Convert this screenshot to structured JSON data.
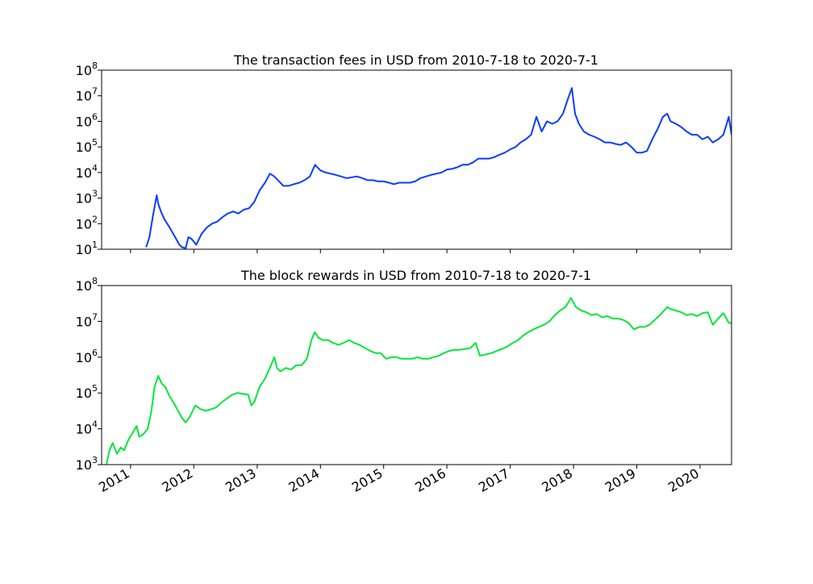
{
  "chart_data": [
    {
      "type": "line",
      "title": "The transaction fees in USD from 2010-7-18 to 2020-7-1",
      "xlabel": "",
      "ylabel": "",
      "y_scale": "log",
      "ylim": [
        10,
        100000000
      ],
      "xlim": [
        "2010-07-18",
        "2020-07-01"
      ],
      "y_tick_base": "10",
      "y_tick_exponents": [
        "1",
        "2",
        "3",
        "4",
        "5",
        "6",
        "7",
        "8"
      ],
      "x_tick_labels_shown": false,
      "grid": false,
      "series": [
        {
          "color": "#0a3cff",
          "x": [
            "2011-04-01",
            "2011-04-20",
            "2011-05-10",
            "2011-06-01",
            "2011-06-10",
            "2011-06-25",
            "2011-07-15",
            "2011-08-15",
            "2011-09-15",
            "2011-10-10",
            "2011-10-25",
            "2011-11-15",
            "2011-12-01",
            "2011-12-20",
            "2012-01-15",
            "2012-02-15",
            "2012-03-15",
            "2012-04-15",
            "2012-05-15",
            "2012-06-15",
            "2012-07-15",
            "2012-08-15",
            "2012-09-15",
            "2012-10-15",
            "2012-11-15",
            "2012-12-15",
            "2013-01-15",
            "2013-02-15",
            "2013-03-15",
            "2013-04-10",
            "2013-05-01",
            "2013-06-01",
            "2013-07-01",
            "2013-08-01",
            "2013-09-01",
            "2013-10-01",
            "2013-11-01",
            "2013-12-01",
            "2014-01-01",
            "2014-02-01",
            "2014-03-01",
            "2014-04-01",
            "2014-05-01",
            "2014-06-01",
            "2014-07-01",
            "2014-08-01",
            "2014-09-01",
            "2014-10-01",
            "2014-11-01",
            "2014-12-01",
            "2015-01-01",
            "2015-02-01",
            "2015-03-01",
            "2015-04-01",
            "2015-05-01",
            "2015-06-01",
            "2015-07-01",
            "2015-08-01",
            "2015-09-01",
            "2015-10-01",
            "2015-11-01",
            "2015-12-01",
            "2016-01-01",
            "2016-02-01",
            "2016-03-01",
            "2016-04-01",
            "2016-05-01",
            "2016-06-01",
            "2016-07-01",
            "2016-08-01",
            "2016-09-01",
            "2016-10-01",
            "2016-11-01",
            "2016-12-01",
            "2017-01-01",
            "2017-02-01",
            "2017-03-01",
            "2017-04-01",
            "2017-05-01",
            "2017-06-01",
            "2017-07-01",
            "2017-08-01",
            "2017-09-01",
            "2017-10-01",
            "2017-11-01",
            "2017-12-01",
            "2017-12-22",
            "2018-01-10",
            "2018-02-01",
            "2018-03-01",
            "2018-04-01",
            "2018-05-01",
            "2018-06-01",
            "2018-07-01",
            "2018-08-01",
            "2018-09-01",
            "2018-10-01",
            "2018-11-01",
            "2018-12-01",
            "2019-01-01",
            "2019-02-01",
            "2019-03-01",
            "2019-04-01",
            "2019-05-01",
            "2019-06-01",
            "2019-06-26",
            "2019-07-15",
            "2019-08-15",
            "2019-09-15",
            "2019-10-15",
            "2019-11-15",
            "2019-12-15",
            "2020-01-15",
            "2020-02-15",
            "2020-03-15",
            "2020-04-15",
            "2020-05-15",
            "2020-06-15",
            "2020-07-01"
          ],
          "y": [
            12,
            30,
            200,
            1300,
            600,
            300,
            150,
            70,
            30,
            15,
            12,
            11,
            30,
            25,
            15,
            40,
            70,
            100,
            120,
            180,
            250,
            300,
            250,
            350,
            400,
            700,
            2000,
            4000,
            9000,
            7000,
            5000,
            3000,
            3000,
            3500,
            4000,
            5000,
            7000,
            20000,
            12000,
            10000,
            9000,
            8000,
            7000,
            6000,
            6500,
            7000,
            6000,
            5000,
            5000,
            4500,
            4500,
            4000,
            3500,
            4000,
            4000,
            4000,
            4500,
            6000,
            7000,
            8000,
            9000,
            10000,
            13000,
            14000,
            16000,
            20000,
            20000,
            25000,
            35000,
            35000,
            35000,
            40000,
            50000,
            60000,
            80000,
            100000,
            150000,
            200000,
            300000,
            1500000,
            400000,
            1000000,
            800000,
            1000000,
            2000000,
            8000000,
            20000000,
            2000000,
            800000,
            400000,
            300000,
            250000,
            200000,
            150000,
            150000,
            130000,
            120000,
            150000,
            100000,
            60000,
            60000,
            70000,
            200000,
            500000,
            1500000,
            2000000,
            1000000,
            800000,
            600000,
            400000,
            300000,
            300000,
            200000,
            250000,
            150000,
            200000,
            300000,
            1500000,
            300000
          ]
        }
      ]
    },
    {
      "type": "line",
      "title": "The block rewards in USD from 2010-7-18 to 2020-7-1",
      "xlabel": "",
      "ylabel": "",
      "y_scale": "log",
      "ylim": [
        1000,
        100000000
      ],
      "xlim": [
        "2010-07-18",
        "2020-07-01"
      ],
      "y_tick_base": "10",
      "y_tick_exponents": [
        "3",
        "4",
        "5",
        "6",
        "7",
        "8"
      ],
      "x_tick_labels": [
        "2011",
        "2012",
        "2013",
        "2014",
        "2015",
        "2016",
        "2017",
        "2018",
        "2019",
        "2020"
      ],
      "grid": false,
      "series": [
        {
          "color": "#05e639",
          "x": [
            "2010-08-15",
            "2010-09-01",
            "2010-09-20",
            "2010-10-15",
            "2010-11-05",
            "2010-11-25",
            "2010-12-20",
            "2011-01-15",
            "2011-02-05",
            "2011-02-20",
            "2011-03-15",
            "2011-04-10",
            "2011-05-01",
            "2011-05-20",
            "2011-06-10",
            "2011-07-01",
            "2011-07-20",
            "2011-08-15",
            "2011-09-10",
            "2011-10-05",
            "2011-10-25",
            "2011-11-15",
            "2011-12-10",
            "2012-01-10",
            "2012-02-10",
            "2012-03-10",
            "2012-04-10",
            "2012-05-10",
            "2012-06-10",
            "2012-07-10",
            "2012-08-10",
            "2012-09-10",
            "2012-10-10",
            "2012-11-10",
            "2012-11-28",
            "2012-12-15",
            "2013-01-15",
            "2013-02-15",
            "2013-03-15",
            "2013-04-10",
            "2013-04-25",
            "2013-05-15",
            "2013-06-15",
            "2013-07-15",
            "2013-08-15",
            "2013-09-15",
            "2013-10-15",
            "2013-11-10",
            "2013-11-30",
            "2013-12-20",
            "2014-01-15",
            "2014-02-15",
            "2014-03-15",
            "2014-04-15",
            "2014-05-15",
            "2014-06-15",
            "2014-07-15",
            "2014-08-15",
            "2014-09-15",
            "2014-10-15",
            "2014-11-15",
            "2014-12-15",
            "2015-01-15",
            "2015-02-15",
            "2015-03-15",
            "2015-04-15",
            "2015-05-15",
            "2015-06-15",
            "2015-07-15",
            "2015-08-15",
            "2015-09-15",
            "2015-10-15",
            "2015-11-15",
            "2015-12-15",
            "2016-01-15",
            "2016-02-15",
            "2016-03-15",
            "2016-04-15",
            "2016-05-15",
            "2016-06-15",
            "2016-07-09",
            "2016-08-15",
            "2016-09-15",
            "2016-10-15",
            "2016-11-15",
            "2016-12-15",
            "2017-01-15",
            "2017-02-15",
            "2017-03-15",
            "2017-04-15",
            "2017-05-15",
            "2017-06-15",
            "2017-07-15",
            "2017-08-15",
            "2017-09-15",
            "2017-10-15",
            "2017-11-15",
            "2017-12-17",
            "2018-01-15",
            "2018-02-15",
            "2018-03-15",
            "2018-04-15",
            "2018-05-15",
            "2018-06-15",
            "2018-07-15",
            "2018-08-15",
            "2018-09-15",
            "2018-10-15",
            "2018-11-15",
            "2018-12-15",
            "2019-01-15",
            "2019-02-15",
            "2019-03-15",
            "2019-04-15",
            "2019-05-15",
            "2019-06-26",
            "2019-07-15",
            "2019-08-15",
            "2019-09-15",
            "2019-10-15",
            "2019-11-15",
            "2019-12-15",
            "2020-01-15",
            "2020-02-15",
            "2020-03-15",
            "2020-04-15",
            "2020-05-15",
            "2020-06-15",
            "2020-07-01"
          ],
          "y": [
            1000,
            2500,
            4000,
            2000,
            3000,
            2500,
            5000,
            8000,
            12000,
            6000,
            7000,
            10000,
            30000,
            150000,
            300000,
            180000,
            150000,
            80000,
            50000,
            30000,
            20000,
            15000,
            22000,
            45000,
            35000,
            32000,
            35000,
            40000,
            55000,
            70000,
            90000,
            100000,
            95000,
            90000,
            45000,
            55000,
            150000,
            250000,
            500000,
            1000000,
            500000,
            400000,
            500000,
            450000,
            600000,
            600000,
            900000,
            3000000,
            5000000,
            3500000,
            3000000,
            3000000,
            2500000,
            2200000,
            2500000,
            3000000,
            2500000,
            2200000,
            1800000,
            1500000,
            1300000,
            1300000,
            900000,
            1000000,
            1000000,
            900000,
            900000,
            900000,
            1000000,
            900000,
            900000,
            1000000,
            1100000,
            1300000,
            1500000,
            1600000,
            1600000,
            1700000,
            1800000,
            2500000,
            1100000,
            1200000,
            1300000,
            1500000,
            1700000,
            2000000,
            2500000,
            3000000,
            4000000,
            5000000,
            6000000,
            7000000,
            8000000,
            10000000,
            15000000,
            20000000,
            25000000,
            45000000,
            25000000,
            20000000,
            18000000,
            15000000,
            16000000,
            13000000,
            14000000,
            12000000,
            12000000,
            11000000,
            9000000,
            6000000,
            7000000,
            7000000,
            8000000,
            11000000,
            15000000,
            25000000,
            22000000,
            20000000,
            18000000,
            15000000,
            16000000,
            14000000,
            17000000,
            18000000,
            8000000,
            12000000,
            17000000,
            9000000,
            9000000
          ]
        }
      ]
    }
  ]
}
